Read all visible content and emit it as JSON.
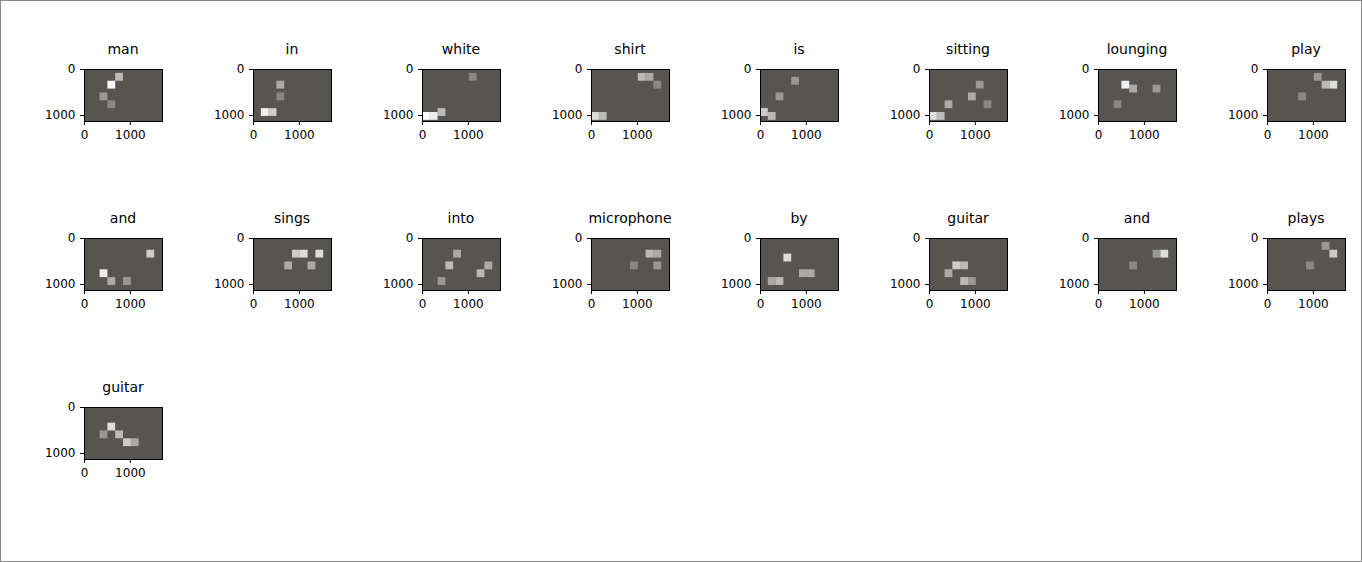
{
  "chart_data": [
    {
      "type": "heatmap",
      "title": "man",
      "xlim": [
        0,
        1700
      ],
      "ylim": [
        1130,
        0
      ],
      "xticks": [
        0,
        1000
      ],
      "yticks": [
        0,
        1000
      ],
      "cell_size": 170,
      "cells": [
        [
          510,
          255,
          1
        ],
        [
          680,
          85,
          0.6
        ],
        [
          340,
          510,
          0.4
        ],
        [
          510,
          680,
          0.3
        ]
      ]
    },
    {
      "type": "heatmap",
      "title": "in",
      "xlim": [
        0,
        1700
      ],
      "ylim": [
        1130,
        0
      ],
      "xticks": [
        0,
        1000
      ],
      "yticks": [
        0,
        1000
      ],
      "cell_size": 170,
      "cells": [
        [
          170,
          850,
          0.9
        ],
        [
          340,
          850,
          0.7
        ],
        [
          510,
          255,
          0.5
        ],
        [
          510,
          510,
          0.3
        ]
      ]
    },
    {
      "type": "heatmap",
      "title": "white",
      "xlim": [
        0,
        1700
      ],
      "ylim": [
        1130,
        0
      ],
      "xticks": [
        0,
        1000
      ],
      "yticks": [
        0,
        1000
      ],
      "cell_size": 170,
      "cells": [
        [
          0,
          935,
          1
        ],
        [
          170,
          935,
          0.9
        ],
        [
          340,
          850,
          0.6
        ],
        [
          1020,
          85,
          0.3
        ]
      ]
    },
    {
      "type": "heatmap",
      "title": "shirt",
      "xlim": [
        0,
        1700
      ],
      "ylim": [
        1130,
        0
      ],
      "xticks": [
        0,
        1000
      ],
      "yticks": [
        0,
        1000
      ],
      "cell_size": 170,
      "cells": [
        [
          0,
          935,
          0.8
        ],
        [
          170,
          935,
          0.6
        ],
        [
          1020,
          85,
          0.6
        ],
        [
          1190,
          85,
          0.5
        ],
        [
          1360,
          255,
          0.3
        ]
      ]
    },
    {
      "type": "heatmap",
      "title": "is",
      "xlim": [
        0,
        1700
      ],
      "ylim": [
        1130,
        0
      ],
      "xticks": [
        0,
        1000
      ],
      "yticks": [
        0,
        1000
      ],
      "cell_size": 170,
      "cells": [
        [
          0,
          850,
          0.7
        ],
        [
          170,
          935,
          0.6
        ],
        [
          340,
          510,
          0.4
        ],
        [
          680,
          170,
          0.4
        ]
      ]
    },
    {
      "type": "heatmap",
      "title": "sitting",
      "xlim": [
        0,
        1700
      ],
      "ylim": [
        1130,
        0
      ],
      "xticks": [
        0,
        1000
      ],
      "yticks": [
        0,
        1000
      ],
      "cell_size": 170,
      "cells": [
        [
          0,
          935,
          0.8
        ],
        [
          170,
          935,
          0.6
        ],
        [
          340,
          680,
          0.5
        ],
        [
          850,
          510,
          0.5
        ],
        [
          1020,
          255,
          0.4
        ],
        [
          1190,
          680,
          0.3
        ]
      ]
    },
    {
      "type": "heatmap",
      "title": "lounging",
      "xlim": [
        0,
        1700
      ],
      "ylim": [
        1130,
        0
      ],
      "xticks": [
        0,
        1000
      ],
      "yticks": [
        0,
        1000
      ],
      "cell_size": 170,
      "cells": [
        [
          510,
          255,
          0.9
        ],
        [
          680,
          340,
          0.5
        ],
        [
          1190,
          340,
          0.4
        ],
        [
          340,
          680,
          0.3
        ]
      ]
    },
    {
      "type": "heatmap",
      "title": "play",
      "xlim": [
        0,
        1700
      ],
      "ylim": [
        1130,
        0
      ],
      "xticks": [
        0,
        1000
      ],
      "yticks": [
        0,
        1000
      ],
      "cell_size": 170,
      "cells": [
        [
          1360,
          255,
          0.8
        ],
        [
          1190,
          255,
          0.6
        ],
        [
          1020,
          85,
          0.4
        ],
        [
          680,
          510,
          0.3
        ]
      ]
    },
    {
      "type": "heatmap",
      "title": "and",
      "xlim": [
        0,
        1700
      ],
      "ylim": [
        1130,
        0
      ],
      "xticks": [
        0,
        1000
      ],
      "yticks": [
        0,
        1000
      ],
      "cell_size": 170,
      "cells": [
        [
          340,
          680,
          0.9
        ],
        [
          1360,
          255,
          0.7
        ],
        [
          510,
          850,
          0.5
        ],
        [
          850,
          850,
          0.4
        ]
      ]
    },
    {
      "type": "heatmap",
      "title": "sings",
      "xlim": [
        0,
        1700
      ],
      "ylim": [
        1130,
        0
      ],
      "xticks": [
        0,
        1000
      ],
      "yticks": [
        0,
        1000
      ],
      "cell_size": 170,
      "cells": [
        [
          850,
          255,
          0.7
        ],
        [
          1020,
          255,
          0.8
        ],
        [
          1360,
          255,
          0.8
        ],
        [
          680,
          510,
          0.5
        ],
        [
          1190,
          510,
          0.5
        ]
      ]
    },
    {
      "type": "heatmap",
      "title": "into",
      "xlim": [
        0,
        1700
      ],
      "ylim": [
        1130,
        0
      ],
      "xticks": [
        0,
        1000
      ],
      "yticks": [
        0,
        1000
      ],
      "cell_size": 170,
      "cells": [
        [
          510,
          510,
          0.6
        ],
        [
          680,
          255,
          0.5
        ],
        [
          1190,
          680,
          0.6
        ],
        [
          1360,
          510,
          0.5
        ],
        [
          340,
          850,
          0.4
        ]
      ]
    },
    {
      "type": "heatmap",
      "title": "microphone",
      "xlim": [
        0,
        1700
      ],
      "ylim": [
        1130,
        0
      ],
      "xticks": [
        0,
        1000
      ],
      "yticks": [
        0,
        1000
      ],
      "cell_size": 170,
      "cells": [
        [
          1190,
          255,
          0.6
        ],
        [
          1360,
          255,
          0.5
        ],
        [
          1360,
          510,
          0.4
        ],
        [
          850,
          510,
          0.3
        ]
      ]
    },
    {
      "type": "heatmap",
      "title": "by",
      "xlim": [
        0,
        1700
      ],
      "ylim": [
        1130,
        0
      ],
      "xticks": [
        0,
        1000
      ],
      "yticks": [
        0,
        1000
      ],
      "cell_size": 170,
      "cells": [
        [
          510,
          340,
          0.8
        ],
        [
          340,
          850,
          0.6
        ],
        [
          850,
          680,
          0.5
        ],
        [
          1020,
          680,
          0.5
        ],
        [
          170,
          850,
          0.5
        ]
      ]
    },
    {
      "type": "heatmap",
      "title": "guitar",
      "xlim": [
        0,
        1700
      ],
      "ylim": [
        1130,
        0
      ],
      "xticks": [
        0,
        1000
      ],
      "yticks": [
        0,
        1000
      ],
      "cell_size": 170,
      "cells": [
        [
          510,
          510,
          0.7
        ],
        [
          680,
          510,
          0.6
        ],
        [
          680,
          850,
          0.6
        ],
        [
          340,
          680,
          0.5
        ],
        [
          850,
          850,
          0.4
        ]
      ]
    },
    {
      "type": "heatmap",
      "title": "and",
      "xlim": [
        0,
        1700
      ],
      "ylim": [
        1130,
        0
      ],
      "xticks": [
        0,
        1000
      ],
      "yticks": [
        0,
        1000
      ],
      "cell_size": 170,
      "cells": [
        [
          1360,
          255,
          0.8
        ],
        [
          1190,
          255,
          0.4
        ],
        [
          680,
          510,
          0.3
        ]
      ]
    },
    {
      "type": "heatmap",
      "title": "plays",
      "xlim": [
        0,
        1700
      ],
      "ylim": [
        1130,
        0
      ],
      "xticks": [
        0,
        1000
      ],
      "yticks": [
        0,
        1000
      ],
      "cell_size": 170,
      "cells": [
        [
          1360,
          255,
          0.7
        ],
        [
          1190,
          85,
          0.4
        ],
        [
          850,
          510,
          0.3
        ]
      ]
    },
    {
      "type": "heatmap",
      "title": "guitar",
      "xlim": [
        0,
        1700
      ],
      "ylim": [
        1130,
        0
      ],
      "xticks": [
        0,
        1000
      ],
      "yticks": [
        0,
        1000
      ],
      "cell_size": 170,
      "cells": [
        [
          510,
          340,
          0.8
        ],
        [
          680,
          510,
          0.6
        ],
        [
          850,
          680,
          0.7
        ],
        [
          1020,
          680,
          0.5
        ],
        [
          340,
          510,
          0.4
        ]
      ]
    }
  ]
}
